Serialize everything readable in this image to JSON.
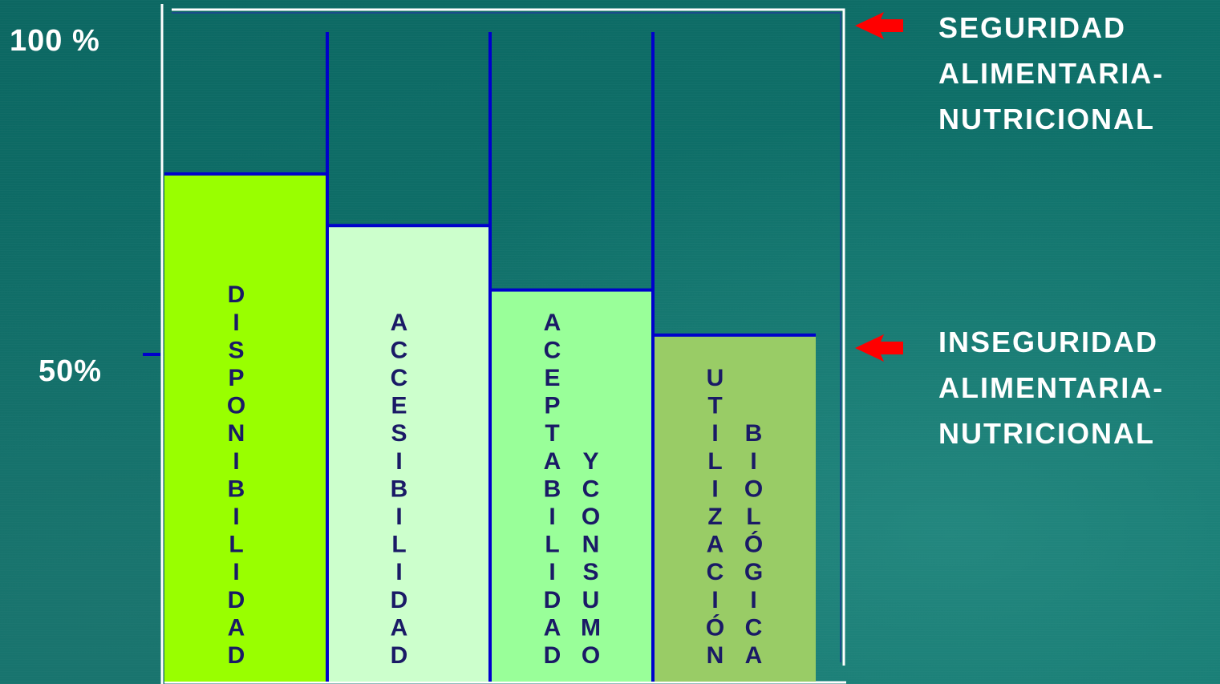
{
  "chart_data": {
    "type": "bar",
    "y_tick_labels": [
      "100 %",
      "50%"
    ],
    "categories": [
      [
        "DISPONIBILIDAD"
      ],
      [
        "ACCESIBILIDAD"
      ],
      [
        "ACEPTABILIDAD",
        "Y CONSUMO"
      ],
      [
        "UTILIZACIÓN",
        "BIOLÓGICA"
      ]
    ],
    "values": [
      78,
      70,
      60,
      53
    ],
    "ylim": [
      0,
      100
    ],
    "bar_colors": [
      "#99ff00",
      "#ccffcc",
      "#99ff99",
      "#99cc66"
    ],
    "text_color": "#1a1a66",
    "border_color": "#0000cc",
    "annotations": [
      {
        "level": 100,
        "lines": [
          "SEGURIDAD",
          "ALIMENTARIA-",
          "NUTRICIONAL"
        ]
      },
      {
        "level": 50,
        "lines": [
          "INSEGURIDAD",
          "ALIMENTARIA-",
          "NUTRICIONAL"
        ]
      }
    ],
    "arrow_color": "#ff0000"
  }
}
